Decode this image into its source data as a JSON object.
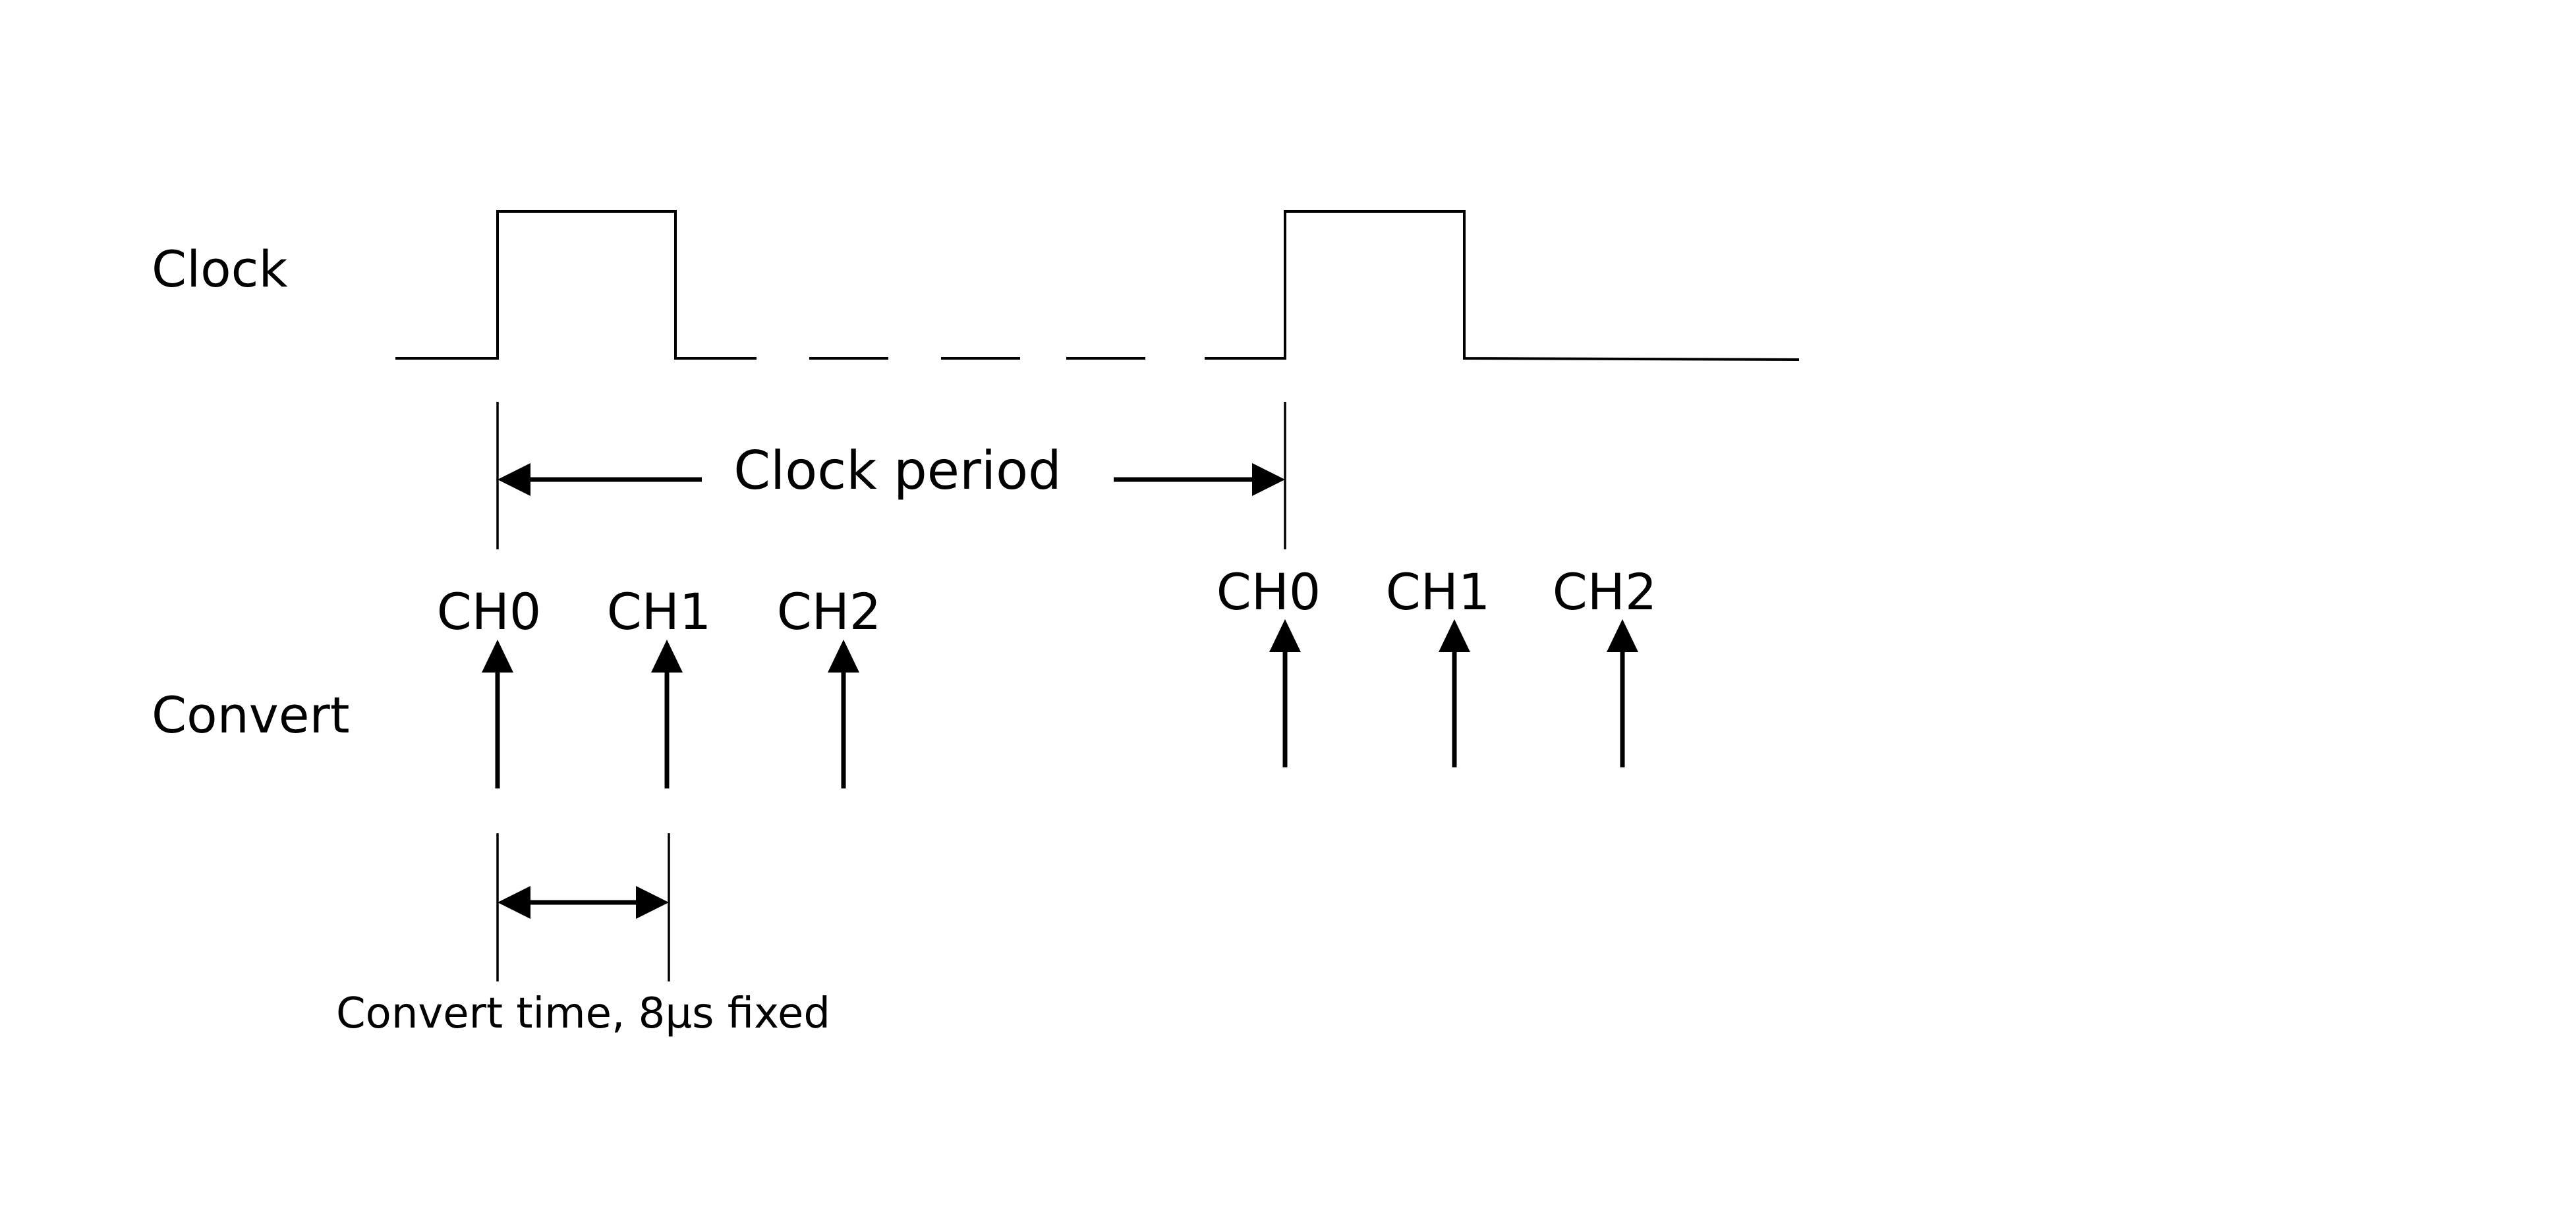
{
  "labels": {
    "clock": "Clock",
    "convert": "Convert",
    "clock_period": "Clock period",
    "convert_time": "Convert time, 8µs fixed"
  },
  "channels": {
    "first_cycle": [
      "CH0",
      "CH1",
      "CH2"
    ],
    "second_cycle": [
      "CH0",
      "CH1",
      "CH2"
    ]
  }
}
